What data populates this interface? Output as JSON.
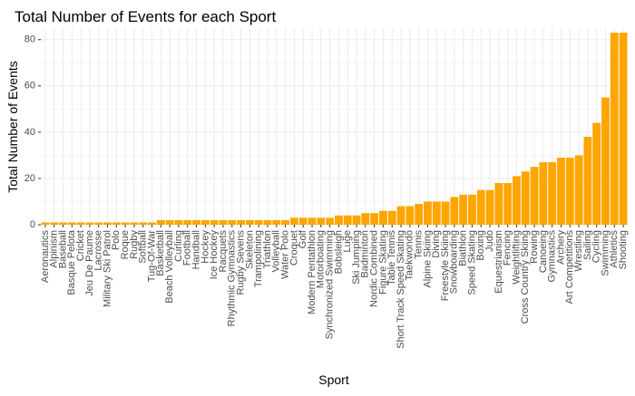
{
  "chart_data": {
    "type": "bar",
    "title": "Total Number of Events for each Sport",
    "xlabel": "Sport",
    "ylabel": "Total Number of Events",
    "ylim": [
      0,
      85
    ],
    "yticks": [
      0,
      20,
      40,
      60,
      80
    ],
    "grid": true,
    "bar_color": "#FFA500",
    "categories": [
      "Aeronautics",
      "Alpinism",
      "Baseball",
      "Basque Pelota",
      "Cricket",
      "Jeu De Paume",
      "Lacrosse",
      "Military Ski Patrol",
      "Polo",
      "Roque",
      "Rugby",
      "Softball",
      "Tug-Of-War",
      "Basketball",
      "Beach Volleyball",
      "Curling",
      "Football",
      "Handball",
      "Hockey",
      "Ice Hockey",
      "Racquets",
      "Rhythmic Gymnastics",
      "Rugby Sevens",
      "Skeleton",
      "Trampolining",
      "Triathlon",
      "Volleyball",
      "Water Polo",
      "Croquet",
      "Golf",
      "Modern Pentathlon",
      "Motorboating",
      "Synchronized Swimming",
      "Bobsleigh",
      "Luge",
      "Ski Jumping",
      "Badminton",
      "Nordic Combined",
      "Figure Skating",
      "Table Tennis",
      "Short Track Speed Skating",
      "Taekwondo",
      "Tennis",
      "Alpine Skiing",
      "Diving",
      "Freestyle Skiing",
      "Snowboarding",
      "Biathlon",
      "Speed Skating",
      "Boxing",
      "Judo",
      "Equestrianism",
      "Fencing",
      "Weightlifting",
      "Cross Country Skiing",
      "Rowing",
      "Canoeing",
      "Gymnastics",
      "Archery",
      "Art Competitions",
      "Wrestling",
      "Sailing",
      "Cycling",
      "Swimming",
      "Athletics",
      "Shooting"
    ],
    "values": [
      1,
      1,
      1,
      1,
      1,
      1,
      1,
      1,
      1,
      1,
      1,
      1,
      1,
      2,
      2,
      2,
      2,
      2,
      2,
      2,
      2,
      2,
      2,
      2,
      2,
      2,
      2,
      2,
      3,
      3,
      3,
      3,
      3,
      4,
      4,
      4,
      5,
      5,
      6,
      6,
      8,
      8,
      9,
      10,
      10,
      10,
      12,
      13,
      13,
      15,
      15,
      18,
      18,
      21,
      23,
      25,
      27,
      27,
      29,
      29,
      30,
      38,
      44,
      55,
      83,
      83
    ]
  }
}
